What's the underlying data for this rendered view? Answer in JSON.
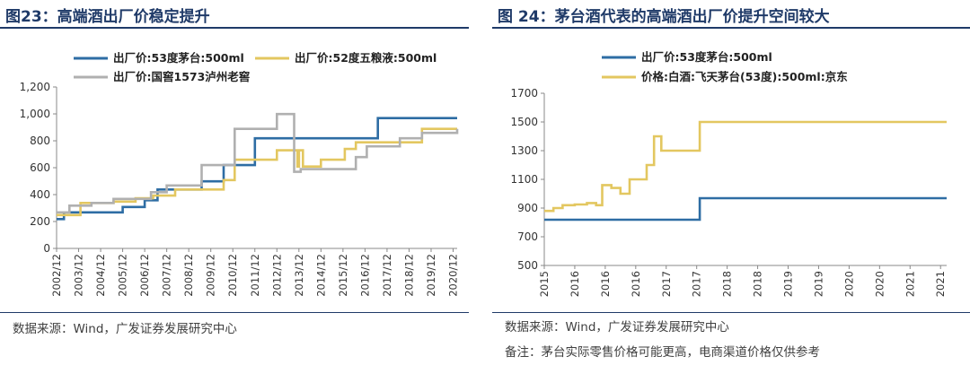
{
  "left": {
    "title": "图23：高端酒出厂价稳定提升",
    "source": "数据来源：Wind，广发证券发展研究中心"
  },
  "right": {
    "title": "图 24：茅台酒代表的高端酒出厂价提升空间较大",
    "source": "数据来源：Wind，广发证券发展研究中心",
    "note": "备注：茅台实际零售价格可能更高，电商渠道价格仅供参考"
  },
  "chart_data": [
    {
      "type": "line",
      "title": "高端酒出厂价稳定提升",
      "step": true,
      "xlim": [
        2002.917,
        2021.1
      ],
      "ylim": [
        0,
        1200
      ],
      "yticks": [
        0,
        200,
        400,
        600,
        800,
        1000,
        1200
      ],
      "ytick_labels": [
        "0",
        "200",
        "400",
        "600",
        "800",
        "1,000",
        "1,200"
      ],
      "xticks": [
        2002.917,
        2003.917,
        2004.917,
        2005.917,
        2006.917,
        2007.917,
        2008.917,
        2009.917,
        2010.917,
        2011.917,
        2012.917,
        2013.917,
        2014.917,
        2015.917,
        2016.917,
        2017.917,
        2018.917,
        2019.917,
        2020.917
      ],
      "xtick_labels": [
        "2002/12",
        "2003/12",
        "2004/12",
        "2005/12",
        "2006/12",
        "2007/12",
        "2008/12",
        "2009/12",
        "2010/12",
        "2011/12",
        "2012/12",
        "2013/12",
        "2014/12",
        "2015/12",
        "2016/12",
        "2017/12",
        "2018/12",
        "2019/12",
        "2020/12"
      ],
      "legend_position": "top",
      "series": [
        {
          "name": "出厂价:53度茅台:500ml",
          "color": "#2e6da4",
          "x": [
            2002.917,
            2003.25,
            2004.1,
            2005.917,
            2006.917,
            2007.5,
            2008.1,
            2009.5,
            2010.5,
            2010.917,
            2011.917,
            2017.5,
            2021.1
          ],
          "y": [
            218,
            268,
            268,
            308,
            358,
            438,
            438,
            499,
            619,
            619,
            819,
            969,
            969
          ]
        },
        {
          "name": "出厂价:52度五粮液:500ml",
          "color": "#e3c760",
          "x": [
            2002.917,
            2003.0,
            2004.0,
            2005.5,
            2006.5,
            2007.3,
            2008.3,
            2010.5,
            2011.0,
            2011.917,
            2012.3,
            2012.917,
            2013.5,
            2013.85,
            2013.92,
            2014.1,
            2014.5,
            2014.917,
            2015.5,
            2016.0,
            2016.5,
            2017.0,
            2017.917,
            2018.5,
            2019.5,
            2021.1
          ],
          "y": [
            248,
            248,
            338,
            348,
            373,
            393,
            438,
            508,
            659,
            659,
            659,
            729,
            729,
            609,
            729,
            609,
            609,
            659,
            659,
            739,
            789,
            789,
            789,
            789,
            889,
            889
          ]
        },
        {
          "name": "出厂价:国窖1573泸州老窖",
          "color": "#b0b0b0",
          "x": [
            2002.917,
            2003.5,
            2004.5,
            2005.5,
            2006.5,
            2007.2,
            2007.917,
            2008.5,
            2009.5,
            2010.3,
            2011.0,
            2011.917,
            2012.917,
            2013.7,
            2014.0,
            2014.5,
            2015.0,
            2016.0,
            2016.5,
            2017.0,
            2017.5,
            2018.5,
            2019.5,
            2021.1
          ],
          "y": [
            268,
            318,
            338,
            368,
            368,
            418,
            468,
            468,
            619,
            619,
            889,
            889,
            999,
            569,
            589,
            589,
            589,
            589,
            679,
            759,
            759,
            819,
            859,
            889
          ]
        }
      ]
    },
    {
      "type": "line",
      "title": "茅台酒代表的高端酒出厂价提升空间较大",
      "step": true,
      "xlim": [
        2015.0,
        2021.6
      ],
      "ylim": [
        500,
        1700
      ],
      "yticks": [
        500,
        700,
        900,
        1100,
        1300,
        1500,
        1700
      ],
      "ytick_labels": [
        "500",
        "700",
        "900",
        "1100",
        "1300",
        "1500",
        "1700"
      ],
      "xticks": [
        2015.0,
        2015.5,
        2016.0,
        2016.5,
        2017.0,
        2017.5,
        2018.0,
        2018.5,
        2019.0,
        2019.5,
        2020.0,
        2020.5,
        2021.0,
        2021.5
      ],
      "xtick_labels": [
        "2015",
        "2016",
        "2016",
        "2016",
        "2017",
        "2017",
        "2018",
        "2018",
        "2019",
        "2019",
        "2020",
        "2020",
        "2021",
        "2021"
      ],
      "legend_position": "top",
      "series": [
        {
          "name": "出厂价:53度茅台:500ml",
          "color": "#2e6da4",
          "x": [
            2015.0,
            2017.5,
            2017.55,
            2021.6
          ],
          "y": [
            819,
            819,
            969,
            969
          ]
        },
        {
          "name": "价格:白酒:飞天茅台(53度):500ml:京东",
          "color": "#e3c760",
          "x": [
            2015.0,
            2015.15,
            2015.3,
            2015.5,
            2015.7,
            2015.85,
            2015.95,
            2016.1,
            2016.25,
            2016.4,
            2016.55,
            2016.68,
            2016.8,
            2016.92,
            2017.0,
            2017.4,
            2017.55,
            2021.6
          ],
          "y": [
            880,
            900,
            920,
            925,
            935,
            920,
            1060,
            1040,
            1000,
            1100,
            1100,
            1200,
            1400,
            1300,
            1300,
            1300,
            1500,
            1500
          ]
        }
      ]
    }
  ]
}
